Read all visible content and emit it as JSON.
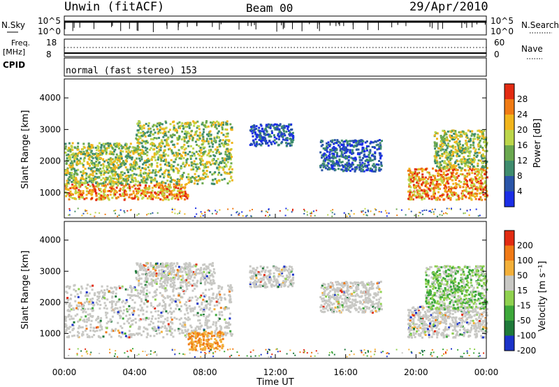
{
  "header": {
    "station": "Unwin (fitACF)",
    "beam": "Beam 00",
    "date": "29/Apr/2010"
  },
  "status_panels": {
    "nsky_label": "N.Sky",
    "nsky_ticks": [
      "10^5",
      "10^0"
    ],
    "nsearch_label": "N.Search",
    "nsearch_ticks": [
      "10^5",
      "10^0"
    ],
    "freq_label": "Freq.",
    "freq_unit": "[MHz]",
    "freq_ticks": [
      "18",
      "8"
    ],
    "nave_label": "Nave",
    "nave_ticks": [
      "60",
      "0"
    ],
    "cpid_label": "CPID",
    "cpid_text": "normal (fast stereo) 153"
  },
  "chart_data": [
    {
      "type": "heatmap",
      "name": "power",
      "ylabel": "Slant Range [km]",
      "ylim": [
        200,
        4600
      ],
      "yticks": [
        1000,
        2000,
        3000,
        4000
      ],
      "xlim": [
        0,
        24
      ],
      "xticks": [
        0,
        4,
        8,
        12,
        16,
        20,
        24
      ],
      "colorbar": {
        "label": "Power [dB]",
        "ticks": [
          "4",
          "8",
          "12",
          "16",
          "20",
          "24",
          "28"
        ],
        "colors": [
          "#1b2ee6",
          "#2a55a8",
          "#3f8c6e",
          "#6aa84f",
          "#bcd64a",
          "#f1b51c",
          "#f07b14",
          "#e32b12"
        ]
      },
      "echo_regions": [
        {
          "t_start": 0.0,
          "t_end": 7.0,
          "range_low": 800,
          "range_high": 1300,
          "level": "strong"
        },
        {
          "t_start": 0.0,
          "t_end": 4.0,
          "range_low": 1300,
          "range_high": 2600,
          "level": "medium"
        },
        {
          "t_start": 4.0,
          "t_end": 9.5,
          "range_low": 1300,
          "range_high": 3300,
          "level": "medium"
        },
        {
          "t_start": 10.5,
          "t_end": 13.0,
          "range_low": 2500,
          "range_high": 3200,
          "level": "weak"
        },
        {
          "t_start": 14.5,
          "t_end": 18.0,
          "range_low": 1700,
          "range_high": 2700,
          "level": "weak"
        },
        {
          "t_start": 19.5,
          "t_end": 24.0,
          "range_low": 800,
          "range_high": 1800,
          "level": "strong"
        },
        {
          "t_start": 21.0,
          "t_end": 24.0,
          "range_low": 1800,
          "range_high": 3000,
          "level": "medium"
        }
      ]
    },
    {
      "type": "heatmap",
      "name": "velocity",
      "ylabel": "Slant Range [km]",
      "xlabel": "Time UT",
      "xticklabels": [
        "00:00",
        "04:00",
        "08:00",
        "12:00",
        "16:00",
        "20:00",
        "00:00"
      ],
      "ylim": [
        200,
        4600
      ],
      "yticks": [
        1000,
        2000,
        3000,
        4000
      ],
      "colorbar": {
        "label": "Velocity [m s⁻¹]",
        "ticks": [
          "200",
          "100",
          "50",
          "15",
          "-15",
          "-50",
          "-100",
          "-200"
        ],
        "colors": [
          "#1b33c9",
          "#1f7a3a",
          "#3da83a",
          "#8fd14f",
          "#c8c8c4",
          "#f3b03a",
          "#f07a16",
          "#e22b12"
        ]
      },
      "echo_regions": [
        {
          "t_start": 0.0,
          "t_end": 9.5,
          "range_low": 900,
          "range_high": 2600,
          "level": "ground"
        },
        {
          "t_start": 4.0,
          "t_end": 8.5,
          "range_low": 2600,
          "range_high": 3300,
          "level": "ground"
        },
        {
          "t_start": 7.0,
          "t_end": 9.0,
          "range_low": 500,
          "range_high": 1100,
          "level": "negative"
        },
        {
          "t_start": 10.5,
          "t_end": 13.0,
          "range_low": 2500,
          "range_high": 3200,
          "level": "ground"
        },
        {
          "t_start": 14.5,
          "t_end": 18.0,
          "range_low": 1700,
          "range_high": 2700,
          "level": "ground"
        },
        {
          "t_start": 19.5,
          "t_end": 24.0,
          "range_low": 900,
          "range_high": 1900,
          "level": "ground"
        },
        {
          "t_start": 20.5,
          "t_end": 24.0,
          "range_low": 1800,
          "range_high": 3200,
          "level": "positive"
        }
      ]
    }
  ]
}
